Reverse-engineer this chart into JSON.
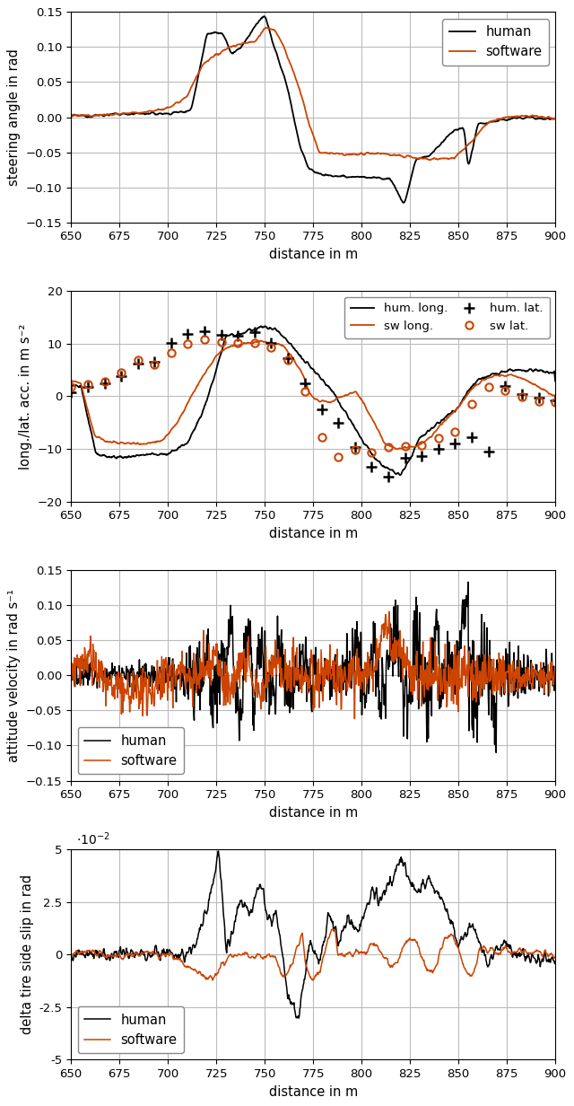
{
  "xlim": [
    650,
    900
  ],
  "xticks": [
    650,
    675,
    700,
    725,
    750,
    775,
    800,
    825,
    850,
    875,
    900
  ],
  "xlabel": "distance in m",
  "human_color": "#000000",
  "software_color": "#cc4400",
  "background_color": "#ffffff",
  "grid_color": "#bbbbbb",
  "subplot1": {
    "ylabel": "steering angle in rad",
    "ylim": [
      -0.15,
      0.15
    ],
    "yticks": [
      -0.15,
      -0.1,
      -0.05,
      0,
      0.05,
      0.1,
      0.15
    ],
    "legend_loc": "upper right",
    "legend_labels": [
      "human",
      "software"
    ]
  },
  "subplot2": {
    "ylabel": "long./lat. acc. in m s⁻²",
    "ylim": [
      -20,
      20
    ],
    "yticks": [
      -20,
      -10,
      0,
      10,
      20
    ],
    "legend_loc": "upper right",
    "legend_labels": [
      "hum. long.",
      "sw long.",
      "hum. lat.",
      "sw lat."
    ]
  },
  "subplot3": {
    "ylabel": "attitude velocity in rad s⁻¹",
    "ylim": [
      -0.15,
      0.15
    ],
    "yticks": [
      -0.15,
      -0.1,
      -0.05,
      0,
      0.05,
      0.1,
      0.15
    ],
    "legend_loc": "lower left",
    "legend_labels": [
      "human",
      "software"
    ]
  },
  "subplot4": {
    "ylabel": "delta tire side slip in rad",
    "ylim": [
      -0.05,
      0.05
    ],
    "yticks": [
      -5,
      -2.5,
      0,
      2.5,
      5
    ],
    "ytick_vals": [
      -0.05,
      -0.025,
      0,
      0.025,
      0.05
    ],
    "legend_loc": "lower left",
    "legend_labels": [
      "human",
      "software"
    ],
    "scale_label": "$\\cdot10^{-2}$"
  }
}
